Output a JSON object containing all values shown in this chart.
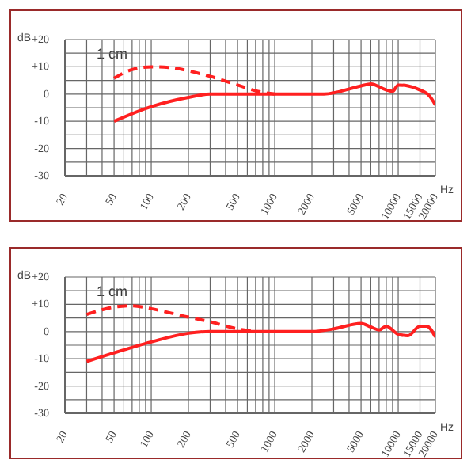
{
  "chart_data": [
    {
      "type": "line",
      "xlabel": "Hz",
      "ylabel": "dB",
      "log": "x",
      "grid": true,
      "marker": "none",
      "annotations": [
        "1 cm"
      ],
      "xlim": [
        20,
        20000
      ],
      "ylim": [
        -30,
        20
      ],
      "xticks": [
        20,
        {
          "value": 30,
          "label": null
        },
        {
          "value": 40,
          "label": null
        },
        50,
        {
          "value": 60,
          "label": null
        },
        {
          "value": 70,
          "label": null
        },
        {
          "value": 80,
          "label": null
        },
        {
          "value": 90,
          "label": null
        },
        100,
        200,
        {
          "value": 300,
          "label": null
        },
        {
          "value": 400,
          "label": null
        },
        500,
        {
          "value": 600,
          "label": null
        },
        {
          "value": 700,
          "label": null
        },
        {
          "value": 800,
          "label": null
        },
        {
          "value": 900,
          "label": null
        },
        1000,
        2000,
        {
          "value": 3000,
          "label": null
        },
        {
          "value": 4000,
          "label": null
        },
        5000,
        {
          "value": 6000,
          "label": null
        },
        {
          "value": 7000,
          "label": null
        },
        {
          "value": 8000,
          "label": null
        },
        {
          "value": 9000,
          "label": null
        },
        10000,
        15000,
        20000
      ],
      "yticks": [
        {
          "value": -30,
          "label": "-30"
        },
        {
          "value": -25,
          "label": null
        },
        {
          "value": -20,
          "label": "-20"
        },
        {
          "value": -15,
          "label": null
        },
        {
          "value": -10,
          "label": "-10"
        },
        {
          "value": -5,
          "label": null
        },
        {
          "value": 0,
          "label": "0"
        },
        {
          "value": 5,
          "label": null
        },
        {
          "value": 10,
          "label": "+10"
        },
        {
          "value": 15,
          "label": null
        },
        {
          "value": 20,
          "label": "+20"
        }
      ],
      "series": [
        {
          "color": "#ff2020",
          "line_style": "solid",
          "x": [
            50,
            100,
            200,
            300,
            500,
            1000,
            2000,
            2500,
            5000,
            6000,
            8000,
            9000,
            10000,
            12000,
            15000,
            18000,
            20000
          ],
          "values": [
            -10,
            -4.6,
            -1.2,
            0,
            0,
            0,
            0,
            0,
            3,
            3.7,
            1.5,
            1,
            3.3,
            3,
            1.5,
            -0.8,
            -4
          ]
        },
        {
          "color": "#ff2020",
          "line_style": "dashed",
          "x": [
            50,
            70,
            100,
            150,
            200,
            300,
            500,
            700,
            1000
          ],
          "values": [
            5.8,
            9,
            10,
            9.6,
            8.5,
            6.5,
            3.3,
            1.2,
            0
          ]
        }
      ]
    },
    {
      "type": "line",
      "xlabel": "Hz",
      "ylabel": "dB",
      "log": "x",
      "grid": true,
      "marker": "none",
      "annotations": [
        "1 cm"
      ],
      "xlim": [
        20,
        20000
      ],
      "ylim": [
        -30,
        20
      ],
      "xticks": [
        20,
        {
          "value": 30,
          "label": null
        },
        {
          "value": 40,
          "label": null
        },
        50,
        {
          "value": 60,
          "label": null
        },
        {
          "value": 70,
          "label": null
        },
        {
          "value": 80,
          "label": null
        },
        {
          "value": 90,
          "label": null
        },
        100,
        200,
        {
          "value": 300,
          "label": null
        },
        {
          "value": 400,
          "label": null
        },
        500,
        {
          "value": 600,
          "label": null
        },
        {
          "value": 700,
          "label": null
        },
        {
          "value": 800,
          "label": null
        },
        {
          "value": 900,
          "label": null
        },
        1000,
        2000,
        {
          "value": 3000,
          "label": null
        },
        {
          "value": 4000,
          "label": null
        },
        5000,
        {
          "value": 6000,
          "label": null
        },
        {
          "value": 7000,
          "label": null
        },
        {
          "value": 8000,
          "label": null
        },
        {
          "value": 9000,
          "label": null
        },
        10000,
        15000,
        20000
      ],
      "yticks": [
        {
          "value": -30,
          "label": "-30"
        },
        {
          "value": -25,
          "label": null
        },
        {
          "value": -20,
          "label": "-20"
        },
        {
          "value": -15,
          "label": null
        },
        {
          "value": -10,
          "label": "-10"
        },
        {
          "value": -5,
          "label": null
        },
        {
          "value": 0,
          "label": "0"
        },
        {
          "value": 5,
          "label": null
        },
        {
          "value": 10,
          "label": "+10"
        },
        {
          "value": 15,
          "label": null
        },
        {
          "value": 20,
          "label": "+20"
        }
      ],
      "series": [
        {
          "color": "#ff2020",
          "line_style": "solid",
          "x": [
            30,
            50,
            100,
            200,
            300,
            500,
            1000,
            2000,
            3000,
            5000,
            6000,
            7000,
            8000,
            10000,
            12000,
            15000,
            17000,
            20000
          ],
          "values": [
            -11,
            -7.8,
            -3.8,
            -0.6,
            0,
            0,
            0,
            0,
            1,
            3,
            1.7,
            0.6,
            2,
            -1,
            -1.5,
            2,
            2,
            -2
          ]
        },
        {
          "color": "#ff2020",
          "line_style": "dashed",
          "x": [
            30,
            50,
            70,
            100,
            200,
            300,
            500,
            700
          ],
          "values": [
            6.3,
            9,
            9.5,
            8.4,
            5.3,
            3.6,
            1,
            0
          ]
        }
      ]
    }
  ]
}
